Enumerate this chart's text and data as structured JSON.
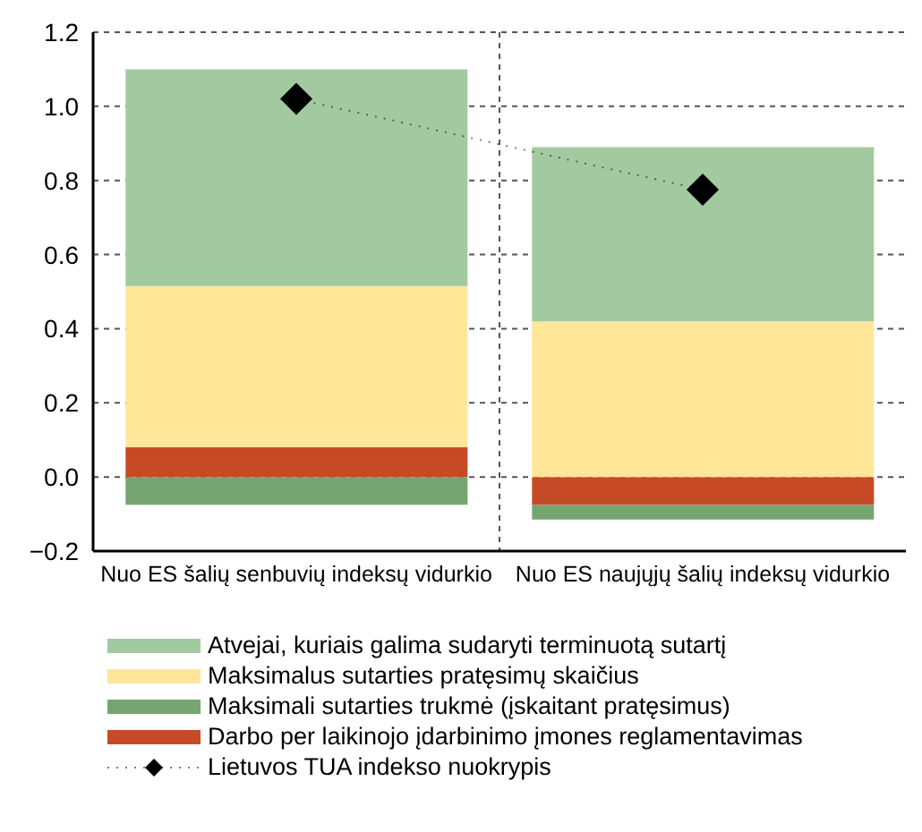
{
  "chart_data": {
    "type": "bar",
    "stacked": true,
    "categories": [
      "Nuo ES šalių senbuvių indeksų vidurkio",
      "Nuo ES naujųjų šalių indeksų vidurkio"
    ],
    "series": [
      {
        "name": "Darbo per laikinojo įdarbinimo įmones reglamentavimas",
        "color": "#c64a25",
        "values": [
          0.08,
          -0.075
        ]
      },
      {
        "name": "Maksimali sutarties trukmė (įskaitant pratęsimus)",
        "color": "#76a572",
        "values": [
          -0.075,
          -0.04
        ]
      },
      {
        "name": "Maksimalus sutarties pratęsimų skaičius",
        "color": "#ffe699",
        "values": [
          0.435,
          0.42
        ]
      },
      {
        "name": "Atvejai, kuriais galima sudaryti terminuotą sutartį",
        "color": "#a3c9a0",
        "values": [
          0.585,
          0.47
        ]
      },
      {
        "name": "Lietuvos TUA indekso nuokrypis",
        "type": "line",
        "color": "#000000",
        "marker": "diamond",
        "line_style": "dotted",
        "values": [
          1.02,
          0.775
        ]
      }
    ],
    "ylim": [
      -0.2,
      1.2
    ],
    "yticks": [
      {
        "value": -0.2,
        "label": "−0.2"
      },
      {
        "value": 0,
        "label": "0.0"
      },
      {
        "value": 0.2,
        "label": "0.2"
      },
      {
        "value": 0.4,
        "label": "0.4"
      },
      {
        "value": 0.6,
        "label": "0.6"
      },
      {
        "value": 0.8,
        "label": "0.8"
      },
      {
        "value": 1,
        "label": "1.0"
      },
      {
        "value": 1.2,
        "label": "1.2"
      }
    ],
    "grid": true,
    "legend": "bottom"
  }
}
